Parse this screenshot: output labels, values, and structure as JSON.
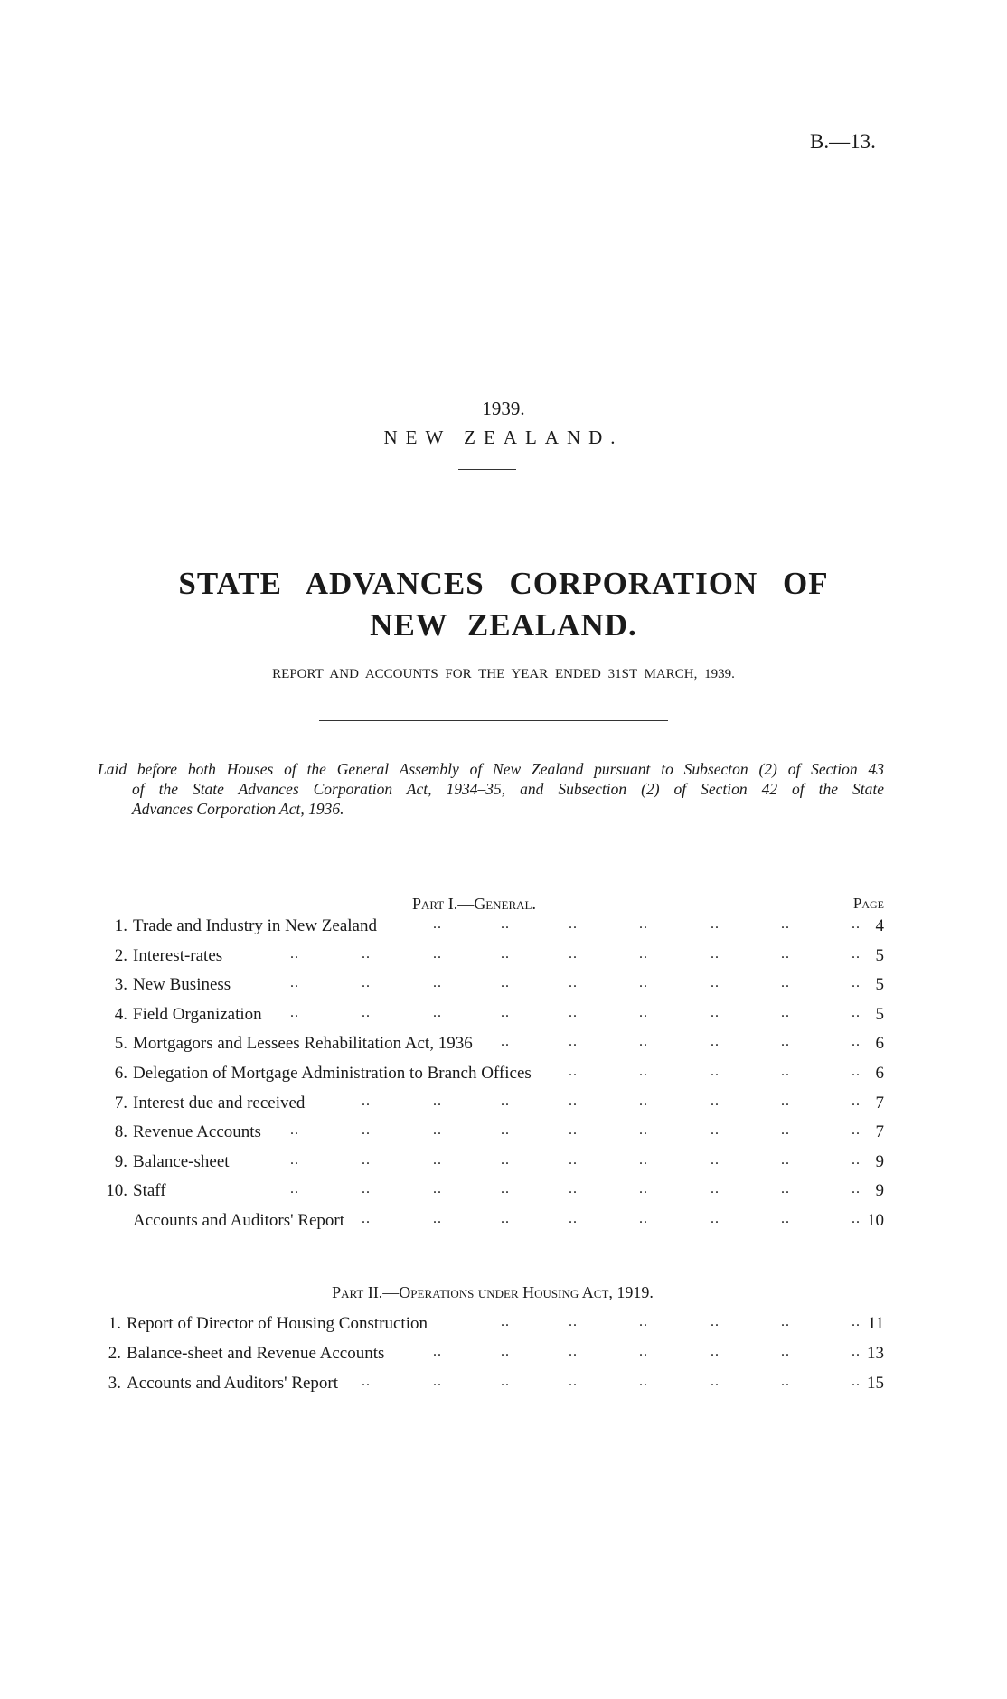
{
  "page_ref": "B.—13.",
  "year": "1939.",
  "country": "NEW ZEALAND.",
  "title_line1": "STATE ADVANCES CORPORATION OF",
  "title_line2": "NEW ZEALAND.",
  "subtitle": "REPORT AND ACCOUNTS FOR THE YEAR ENDED 31ST MARCH, 1939.",
  "laid_before": {
    "line1": "Laid before both Houses of the General Assembly of New Zealand pursuant to Subsecton (2) of Section 43",
    "line2": "of the State Advances Corporation Act, 1934–35, and Subsection (2) of Section 42 of the State",
    "line3": "Advances Corporation Act, 1936."
  },
  "part1": {
    "heading": "Part I.—General.",
    "page_label": "Page",
    "items": [
      {
        "num": "1.",
        "text": "Trade and Industry in New Zealand",
        "page": "4"
      },
      {
        "num": "2.",
        "text": "Interest-rates",
        "page": "5"
      },
      {
        "num": "3.",
        "text": "New Business",
        "page": "5"
      },
      {
        "num": "4.",
        "text": "Field Organization",
        "page": "5"
      },
      {
        "num": "5.",
        "text": "Mortgagors and Lessees Rehabilitation Act, 1936",
        "page": "6"
      },
      {
        "num": "6.",
        "text": "Delegation of Mortgage Administration to Branch Offices",
        "page": "6"
      },
      {
        "num": "7.",
        "text": "Interest due and received",
        "page": "7"
      },
      {
        "num": "8.",
        "text": "Revenue Accounts",
        "page": "7"
      },
      {
        "num": "9.",
        "text": "Balance-sheet",
        "page": "9"
      },
      {
        "num": "10.",
        "text": "Staff",
        "page": "9"
      },
      {
        "num": "",
        "text": "Accounts and Auditors' Report",
        "page": "10"
      }
    ]
  },
  "part2": {
    "heading": "Part II.—Operations under Housing Act, 1919.",
    "items": [
      {
        "num": "1.",
        "text": "Report of Director of Housing Construction",
        "page": "11"
      },
      {
        "num": "2.",
        "text": "Balance-sheet and Revenue Accounts",
        "page": "13"
      },
      {
        "num": "3.",
        "text": "Accounts and Auditors' Report",
        "page": "15"
      }
    ]
  }
}
